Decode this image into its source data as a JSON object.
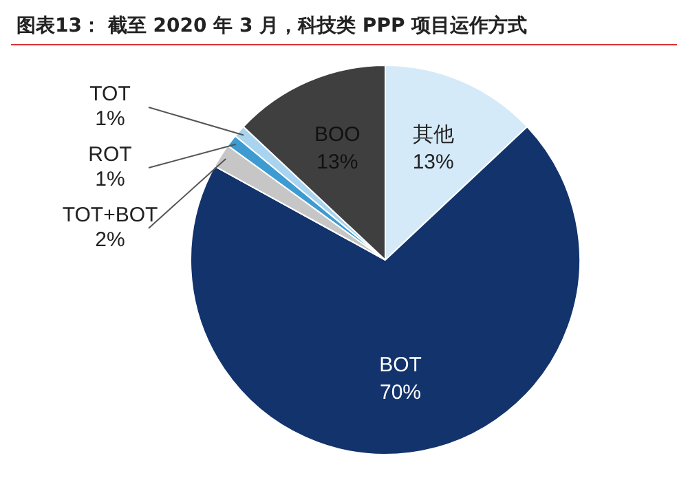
{
  "chart_data": {
    "type": "pie",
    "title": "图表13：   截至 2020 年 3 月，科技类 PPP 项目运作方式",
    "categories": [
      "其他",
      "BOT",
      "TOT+BOT",
      "ROT",
      "TOT",
      "BOO"
    ],
    "values": [
      13,
      70,
      2,
      1,
      1,
      13
    ],
    "colors": [
      "#d4eaf8",
      "#12336b",
      "#c6c6c6",
      "#3d9bd2",
      "#a8d4f0",
      "#3f3f3f"
    ],
    "value_labels": [
      "13%",
      "70%",
      "2%",
      "1%",
      "1%",
      "13%"
    ],
    "legend": false
  }
}
